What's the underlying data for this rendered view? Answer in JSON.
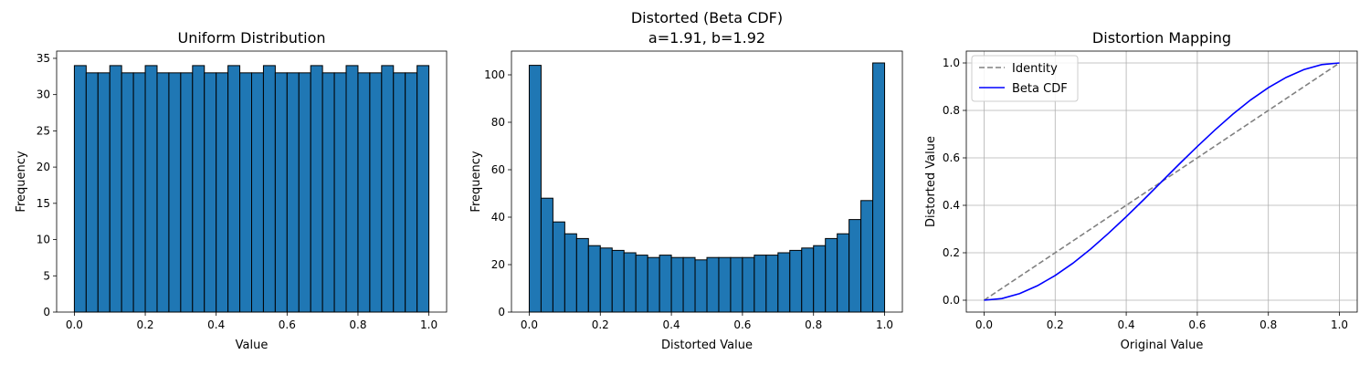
{
  "chart_data": [
    {
      "type": "bar",
      "title": "Uniform Distribution",
      "xlabel": "Value",
      "ylabel": "Frequency",
      "xlim": [
        -0.05,
        1.05
      ],
      "ylim": [
        0,
        36
      ],
      "xticks": [
        0.0,
        0.2,
        0.4,
        0.6,
        0.8,
        1.0
      ],
      "xtick_labels": [
        "0.0",
        "0.2",
        "0.4",
        "0.6",
        "0.8",
        "1.0"
      ],
      "yticks": [
        0,
        5,
        10,
        15,
        20,
        25,
        30,
        35
      ],
      "ytick_labels": [
        "0",
        "5",
        "10",
        "15",
        "20",
        "25",
        "30",
        "35"
      ],
      "bin_range": [
        0,
        1
      ],
      "values": [
        34,
        33,
        33,
        34,
        33,
        33,
        34,
        33,
        33,
        33,
        34,
        33,
        33,
        34,
        33,
        33,
        34,
        33,
        33,
        33,
        34,
        33,
        33,
        34,
        33,
        33,
        34,
        33,
        33,
        34
      ],
      "bar_color": "#1f77b4",
      "edge_color": "#000000",
      "grid": false
    },
    {
      "type": "bar",
      "title": "Distorted (Beta CDF)",
      "subtitle": "a=1.91, b=1.92",
      "xlabel": "Distorted Value",
      "ylabel": "Frequency",
      "xlim": [
        -0.05,
        1.05
      ],
      "ylim": [
        0,
        110
      ],
      "xticks": [
        0.0,
        0.2,
        0.4,
        0.6,
        0.8,
        1.0
      ],
      "xtick_labels": [
        "0.0",
        "0.2",
        "0.4",
        "0.6",
        "0.8",
        "1.0"
      ],
      "yticks": [
        0,
        20,
        40,
        60,
        80,
        100
      ],
      "ytick_labels": [
        "0",
        "20",
        "40",
        "60",
        "80",
        "100"
      ],
      "bin_range": [
        0,
        1
      ],
      "values": [
        104,
        48,
        38,
        33,
        31,
        28,
        27,
        26,
        25,
        24,
        23,
        24,
        23,
        23,
        22,
        23,
        23,
        23,
        23,
        24,
        24,
        25,
        26,
        27,
        28,
        31,
        33,
        39,
        47,
        105
      ],
      "bar_color": "#1f77b4",
      "edge_color": "#000000",
      "grid": false
    },
    {
      "type": "line",
      "title": "Distortion Mapping",
      "xlabel": "Original Value",
      "ylabel": "Distorted Value",
      "xlim": [
        -0.05,
        1.05
      ],
      "ylim": [
        -0.05,
        1.05
      ],
      "xticks": [
        0.0,
        0.2,
        0.4,
        0.6,
        0.8,
        1.0
      ],
      "xtick_labels": [
        "0.0",
        "0.2",
        "0.4",
        "0.6",
        "0.8",
        "1.0"
      ],
      "yticks": [
        0.0,
        0.2,
        0.4,
        0.6,
        0.8,
        1.0
      ],
      "ytick_labels": [
        "0.0",
        "0.2",
        "0.4",
        "0.6",
        "0.8",
        "1.0"
      ],
      "grid": true,
      "legend_position": "top-left",
      "series": [
        {
          "name": "Identity",
          "color": "#808080",
          "style": "dashed",
          "x": [
            0.0,
            1.0
          ],
          "y": [
            0.0,
            1.0
          ]
        },
        {
          "name": "Beta CDF",
          "color": "#0000ff",
          "style": "solid",
          "x": [
            0.0,
            0.05,
            0.1,
            0.15,
            0.2,
            0.25,
            0.3,
            0.35,
            0.4,
            0.45,
            0.5,
            0.55,
            0.6,
            0.65,
            0.7,
            0.75,
            0.8,
            0.85,
            0.9,
            0.95,
            1.0
          ],
          "y": [
            0.0,
            0.007,
            0.028,
            0.061,
            0.104,
            0.156,
            0.216,
            0.282,
            0.352,
            0.425,
            0.5,
            0.575,
            0.648,
            0.718,
            0.784,
            0.844,
            0.896,
            0.939,
            0.972,
            0.993,
            1.0
          ]
        }
      ]
    }
  ]
}
